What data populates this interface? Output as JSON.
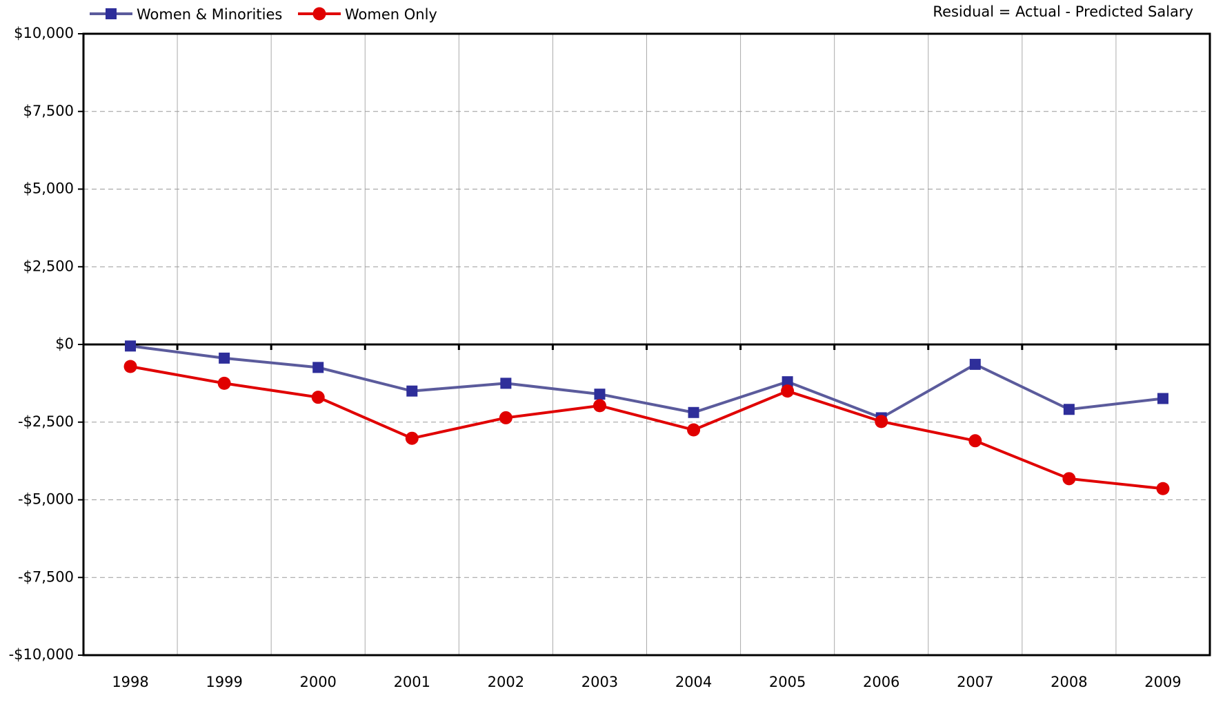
{
  "chart_data": {
    "type": "line",
    "annotation": "Residual = Actual - Predicted Salary",
    "categories": [
      "1998",
      "1999",
      "2000",
      "2001",
      "2002",
      "2003",
      "2004",
      "2005",
      "2006",
      "2007",
      "2008",
      "2009"
    ],
    "series": [
      {
        "name": "Women & Minorities",
        "color": "#5b5b9c",
        "marker": "square",
        "marker_color": "#2e2e9a",
        "values": [
          -50,
          -440,
          -740,
          -1500,
          -1250,
          -1600,
          -2190,
          -1200,
          -2360,
          -640,
          -2090,
          -1740
        ]
      },
      {
        "name": "Women Only",
        "color": "#e00000",
        "marker": "circle",
        "marker_color": "#e00000",
        "values": [
          -710,
          -1250,
          -1700,
          -3020,
          -2360,
          -1970,
          -2750,
          -1500,
          -2480,
          -3100,
          -4320,
          -4640
        ]
      }
    ],
    "ylim": [
      -10000,
      10000
    ],
    "yticks": [
      {
        "value": -10000,
        "label": "-$10,000"
      },
      {
        "value": -7500,
        "label": "-$7,500"
      },
      {
        "value": -5000,
        "label": "-$5,000"
      },
      {
        "value": -2500,
        "label": "-$2,500"
      },
      {
        "value": 0,
        "label": "$0"
      },
      {
        "value": 2500,
        "label": "$2,500"
      },
      {
        "value": 5000,
        "label": "$5,000"
      },
      {
        "value": 7500,
        "label": "$7,500"
      },
      {
        "value": 10000,
        "label": "$10,000"
      }
    ],
    "grid": true
  }
}
